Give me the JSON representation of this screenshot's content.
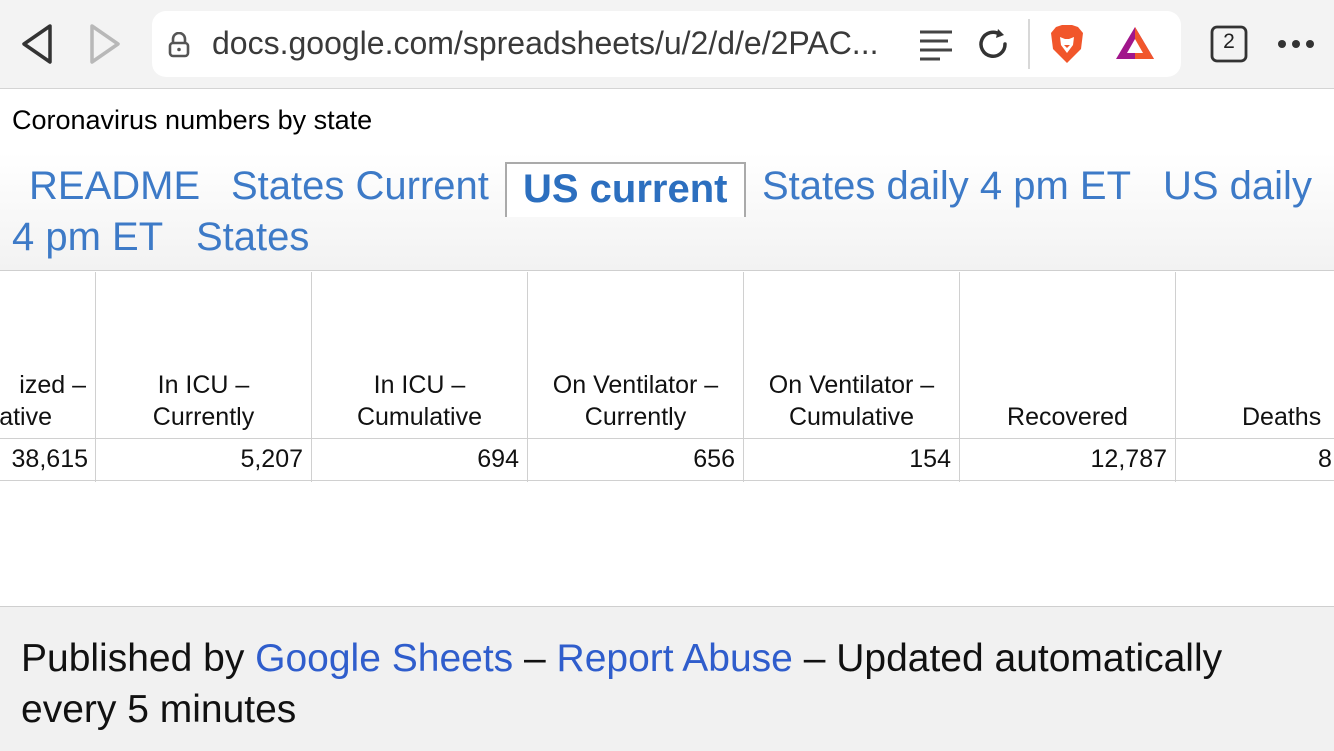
{
  "browser": {
    "url": "docs.google.com/spreadsheets/u/2/d/e/2PAC...",
    "tab_count": "2",
    "icons": {
      "back": "back-arrow-icon",
      "forward": "forward-arrow-icon",
      "lock": "lock-icon",
      "reader": "reader-mode-icon",
      "reload": "reload-icon",
      "brave": "brave-shields-icon",
      "rewards": "brave-rewards-icon",
      "tabs": "tab-switcher-icon",
      "more": "more-menu-icon"
    },
    "colors": {
      "brave": "#f1562b",
      "rewards_a": "#a1168b",
      "rewards_b": "#f1562b"
    }
  },
  "document": {
    "title": "Coronavirus numbers by state"
  },
  "sheet_tabs": [
    {
      "label": "README",
      "active": false
    },
    {
      "label": "States Current",
      "active": false
    },
    {
      "label": "US current",
      "active": true
    },
    {
      "label": "States daily 4 pm ET",
      "active": false
    },
    {
      "label": "US daily",
      "active": false
    },
    {
      "label": "4 pm ET",
      "active": false
    },
    {
      "label": "States",
      "active": false
    }
  ],
  "table": {
    "headers": [
      {
        "line1": "ized –",
        "line2": "ative"
      },
      {
        "line1": "In ICU –",
        "line2": "Currently"
      },
      {
        "line1": "In ICU –",
        "line2": "Cumulative"
      },
      {
        "line1": "On Ventilator –",
        "line2": "Currently"
      },
      {
        "line1": "On Ventilator –",
        "line2": "Cumulative"
      },
      {
        "line1": "",
        "line2": "Recovered"
      },
      {
        "line1": "",
        "line2": "Deaths"
      }
    ],
    "row": [
      "38,615",
      "5,207",
      "694",
      "656",
      "154",
      "12,787",
      "8"
    ]
  },
  "footer": {
    "prefix": "Published by ",
    "link1": "Google Sheets",
    "dash1": " – ",
    "link2": "Report Abuse",
    "suffix": " – Updated automatically every 5 minutes"
  },
  "accent_color": "#3d7ac7"
}
